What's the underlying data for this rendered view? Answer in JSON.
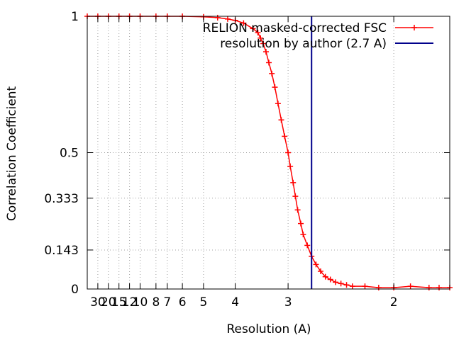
{
  "chart_data": {
    "type": "line",
    "title": "",
    "xlabel": "Resolution (A)",
    "ylabel": "Correlation Coefficient",
    "x_axis": "reciprocal resolution (1/A); tick labels show resolution in A",
    "xlim_resolution_A": [
      60,
      1.7
    ],
    "ylim": [
      0,
      1
    ],
    "grid": true,
    "legend_position": "top-right",
    "x_ticks": [
      {
        "value": 30,
        "label": "30"
      },
      {
        "value": 20,
        "label": "20"
      },
      {
        "value": 15,
        "label": "15"
      },
      {
        "value": 12,
        "label": "12"
      },
      {
        "value": 10,
        "label": "10"
      },
      {
        "value": 8,
        "label": "8"
      },
      {
        "value": 7,
        "label": "7"
      },
      {
        "value": 6,
        "label": "6"
      },
      {
        "value": 5,
        "label": "5"
      },
      {
        "value": 4,
        "label": "4"
      },
      {
        "value": 3,
        "label": "3"
      },
      {
        "value": 2,
        "label": "2"
      }
    ],
    "y_ticks": [
      {
        "value": 0,
        "label": "0"
      },
      {
        "value": 0.143,
        "label": "0.143"
      },
      {
        "value": 0.333,
        "label": "0.333"
      },
      {
        "value": 0.5,
        "label": "0.5"
      },
      {
        "value": 1,
        "label": "1"
      }
    ],
    "series": [
      {
        "name": "RELION masked-corrected FSC",
        "color": "#ff0000",
        "marker": "plus",
        "points": [
          [
            60.0,
            1.0
          ],
          [
            30.0,
            1.0
          ],
          [
            20.0,
            1.0
          ],
          [
            15.0,
            1.0
          ],
          [
            12.0,
            1.0
          ],
          [
            10.0,
            1.0
          ],
          [
            8.0,
            1.0
          ],
          [
            7.0,
            1.0
          ],
          [
            6.0,
            1.0
          ],
          [
            5.0,
            0.998
          ],
          [
            4.5,
            0.995
          ],
          [
            4.2,
            0.99
          ],
          [
            4.0,
            0.985
          ],
          [
            3.8,
            0.975
          ],
          [
            3.6,
            0.955
          ],
          [
            3.5,
            0.94
          ],
          [
            3.45,
            0.92
          ],
          [
            3.4,
            0.9
          ],
          [
            3.35,
            0.87
          ],
          [
            3.3,
            0.83
          ],
          [
            3.25,
            0.79
          ],
          [
            3.2,
            0.74
          ],
          [
            3.15,
            0.68
          ],
          [
            3.1,
            0.62
          ],
          [
            3.05,
            0.56
          ],
          [
            3.0,
            0.5
          ],
          [
            2.97,
            0.45
          ],
          [
            2.93,
            0.39
          ],
          [
            2.9,
            0.34
          ],
          [
            2.87,
            0.29
          ],
          [
            2.83,
            0.24
          ],
          [
            2.8,
            0.2
          ],
          [
            2.75,
            0.16
          ],
          [
            2.7,
            0.12
          ],
          [
            2.65,
            0.09
          ],
          [
            2.6,
            0.065
          ],
          [
            2.55,
            0.045
          ],
          [
            2.5,
            0.035
          ],
          [
            2.45,
            0.025
          ],
          [
            2.4,
            0.02
          ],
          [
            2.35,
            0.015
          ],
          [
            2.3,
            0.01
          ],
          [
            2.2,
            0.01
          ],
          [
            2.1,
            0.005
          ],
          [
            2.0,
            0.005
          ],
          [
            1.9,
            0.01
          ],
          [
            1.8,
            0.005
          ],
          [
            1.75,
            0.005
          ],
          [
            1.7,
            0.005
          ]
        ]
      },
      {
        "name": "resolution by author (2.7 A)",
        "color": "#00008b",
        "marker": "none",
        "vertical_line_at_resolution_A": 2.7
      }
    ]
  }
}
